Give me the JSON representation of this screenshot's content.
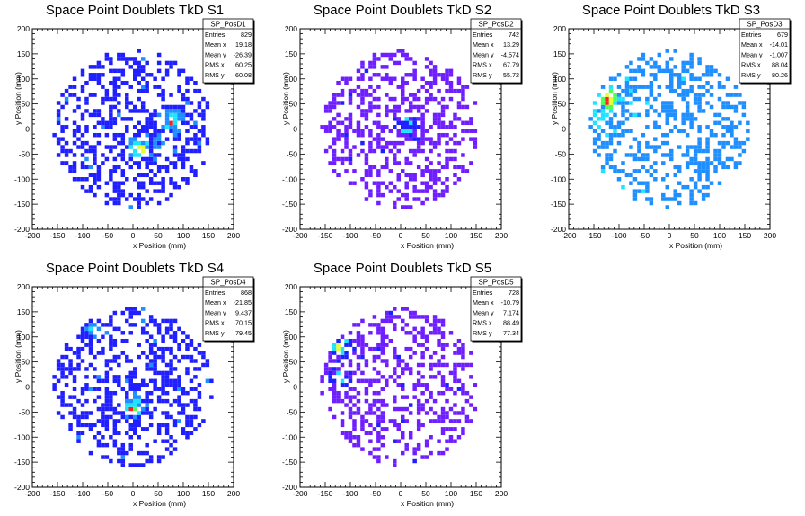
{
  "chart_data": [
    {
      "type": "heatmap",
      "title": "Space Point Doublets TkD S1",
      "xlabel": "x Position (mm)",
      "ylabel": "y Position (mm)",
      "xlim": [
        -200,
        200
      ],
      "ylim": [
        -200,
        200
      ],
      "xticks": [
        "-200",
        "-150",
        "-100",
        "-50",
        "0",
        "50",
        "100",
        "150",
        "200"
      ],
      "yticks": [
        "-200",
        "-150",
        "-100",
        "-50",
        "0",
        "50",
        "100",
        "150",
        "200"
      ],
      "palette": "blue-start",
      "stats": {
        "name": "SP_PosD1",
        "entries": "829",
        "mean_x": "19.18",
        "mean_y": "-26.39",
        "rms_x": "60.25",
        "rms_y": "60.08"
      },
      "hotspots": [
        {
          "x": 15,
          "y": -40,
          "w": 1.0
        },
        {
          "x": 75,
          "y": 15,
          "w": 0.9
        },
        {
          "x": 40,
          "y": -25,
          "w": 0.5
        }
      ]
    },
    {
      "type": "heatmap",
      "title": "Space Point Doublets TkD S2",
      "xlabel": "x Position (mm)",
      "ylabel": "y Position (mm)",
      "xlim": [
        -200,
        200
      ],
      "ylim": [
        -200,
        200
      ],
      "xticks": [
        "-200",
        "-150",
        "-100",
        "-50",
        "0",
        "50",
        "100",
        "150",
        "200"
      ],
      "yticks": [
        "-200",
        "-150",
        "-100",
        "-50",
        "0",
        "50",
        "100",
        "150",
        "200"
      ],
      "palette": "purple-start",
      "stats": {
        "name": "SP_PosD2",
        "entries": "742",
        "mean_x": "13.29",
        "mean_y": "-4.574",
        "rms_x": "67.79",
        "rms_y": "55.72"
      },
      "hotspots": [
        {
          "x": 10,
          "y": 5,
          "w": 0.8
        },
        {
          "x": 20,
          "y": -10,
          "w": 0.6
        }
      ]
    },
    {
      "type": "heatmap",
      "title": "Space Point Doublets TkD S3",
      "xlabel": "x Position (mm)",
      "ylabel": "y Position (mm)",
      "xlim": [
        -200,
        200
      ],
      "ylim": [
        -200,
        200
      ],
      "xticks": [
        "-200",
        "-150",
        "-100",
        "-50",
        "0",
        "50",
        "100",
        "150",
        "200"
      ],
      "yticks": [
        "-200",
        "-150",
        "-100",
        "-50",
        "0",
        "50",
        "100",
        "150",
        "200"
      ],
      "palette": "cyan-start",
      "stats": {
        "name": "SP_PosD3",
        "entries": "679",
        "mean_x": "-14.01",
        "mean_y": "-1.007",
        "rms_x": "88.04",
        "rms_y": "80.26"
      },
      "hotspots": [
        {
          "x": -120,
          "y": 60,
          "w": 1.0
        },
        {
          "x": -140,
          "y": 20,
          "w": 0.6
        }
      ]
    },
    {
      "type": "heatmap",
      "title": "Space Point Doublets TkD S4",
      "xlabel": "x Position (mm)",
      "ylabel": "y Position (mm)",
      "xlim": [
        -200,
        200
      ],
      "ylim": [
        -200,
        200
      ],
      "xticks": [
        "-200",
        "-150",
        "-100",
        "-50",
        "0",
        "50",
        "100",
        "150",
        "200"
      ],
      "yticks": [
        "-200",
        "-150",
        "-100",
        "-50",
        "0",
        "50",
        "100",
        "150",
        "200"
      ],
      "palette": "blue-start",
      "stats": {
        "name": "SP_PosD4",
        "entries": "868",
        "mean_x": "-21.85",
        "mean_y": "9.437",
        "rms_x": "70.15",
        "rms_y": "79.45"
      },
      "hotspots": [
        {
          "x": 0,
          "y": -40,
          "w": 1.0
        },
        {
          "x": -85,
          "y": 115,
          "w": 0.6
        }
      ]
    },
    {
      "type": "heatmap",
      "title": "Space Point Doublets TkD S5",
      "xlabel": "x Position (mm)",
      "ylabel": "y Position (mm)",
      "xlim": [
        -200,
        200
      ],
      "ylim": [
        -200,
        200
      ],
      "xticks": [
        "-200",
        "-150",
        "-100",
        "-50",
        "0",
        "50",
        "100",
        "150",
        "200"
      ],
      "yticks": [
        "-200",
        "-150",
        "-100",
        "-50",
        "0",
        "50",
        "100",
        "150",
        "200"
      ],
      "palette": "purple-start",
      "stats": {
        "name": "SP_PosD5",
        "entries": "728",
        "mean_x": "-10.79",
        "mean_y": "7.174",
        "rms_x": "88.49",
        "rms_y": "77.34"
      },
      "hotspots": [
        {
          "x": -120,
          "y": 80,
          "w": 1.0
        },
        {
          "x": -120,
          "y": 20,
          "w": 0.7
        }
      ]
    }
  ],
  "stat_labels": {
    "entries": "Entries",
    "mean_x": "Mean x",
    "mean_y": "Mean y",
    "rms_x": "RMS x",
    "rms_y": "RMS y"
  },
  "colors": {
    "blue": "#1f1fff",
    "purple": "#6f1fff",
    "cyan_blue": "#1f8fff",
    "cyan": "#1fe4ff",
    "green": "#4fff4f",
    "yellow": "#e8ff2f",
    "red": "#ff1f1f"
  }
}
